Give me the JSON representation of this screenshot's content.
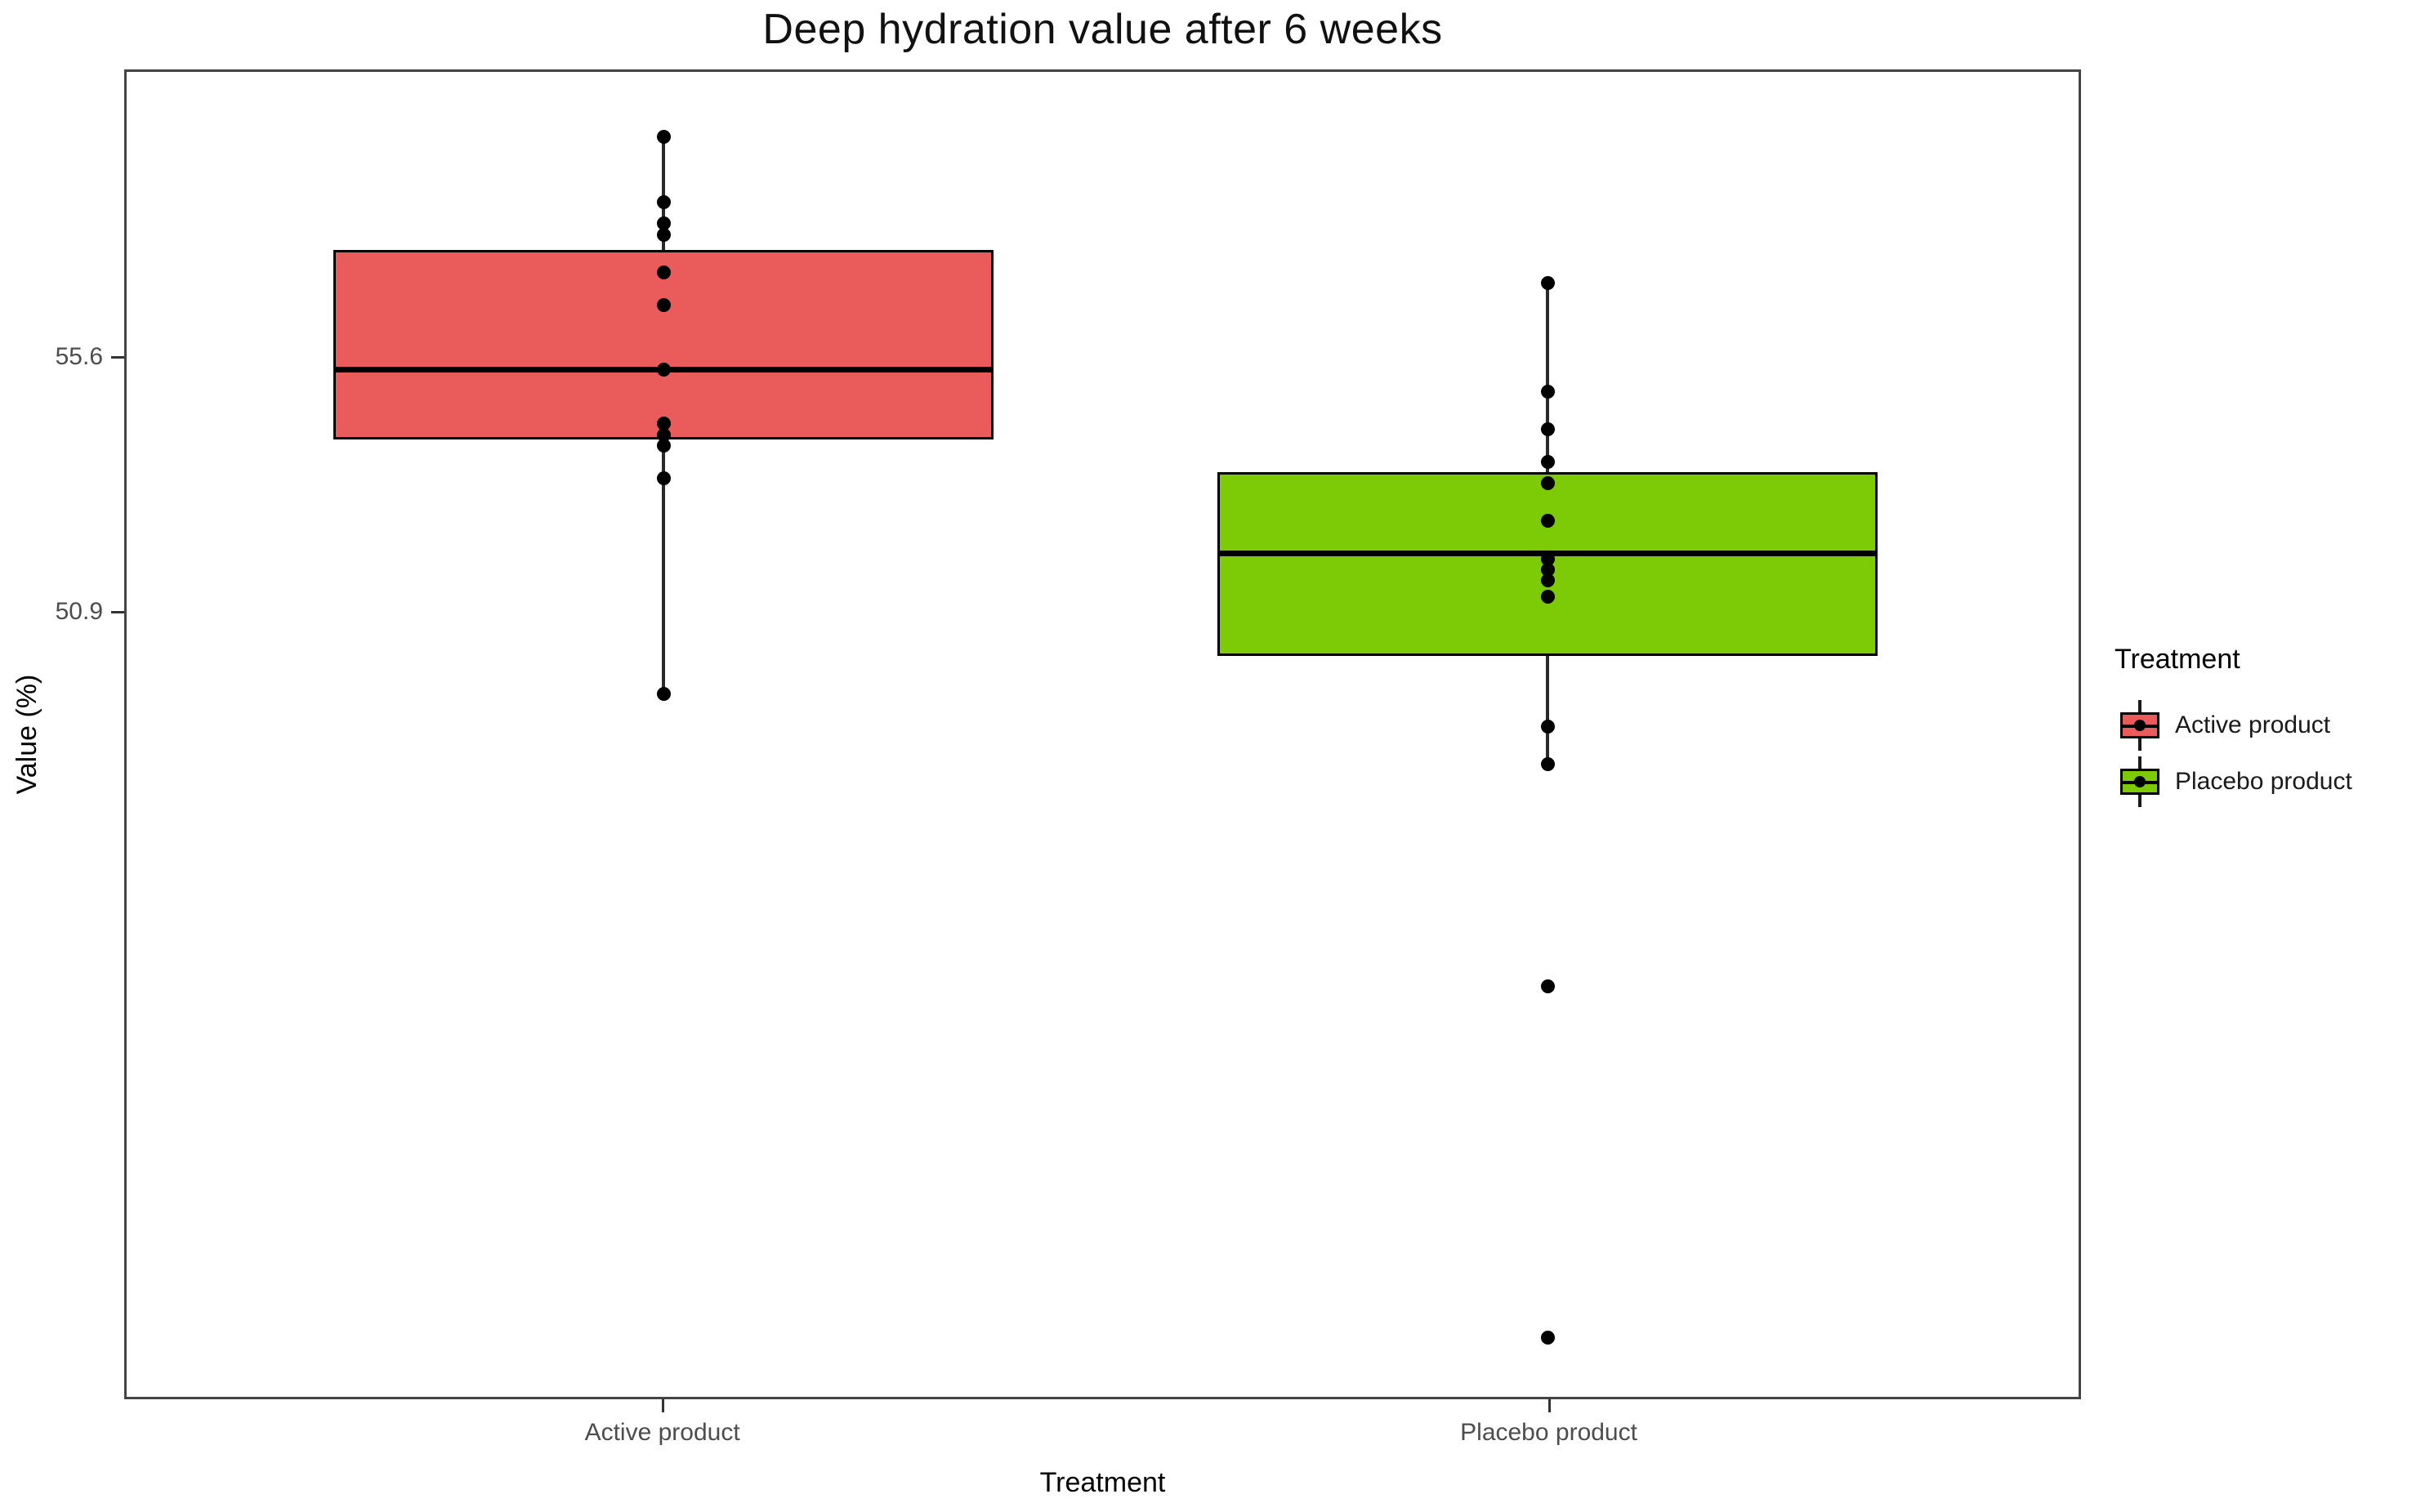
{
  "chart_data": {
    "type": "boxplot",
    "title": "Deep hydration value after 6 weeks",
    "xlabel": "Treatment",
    "ylabel": "Value (%)",
    "y_domain": [
      36.4,
      60.9
    ],
    "y_ticks": [
      {
        "value": 55.6,
        "label": "55.6"
      },
      {
        "value": 50.9,
        "label": "50.9"
      }
    ],
    "grid": false,
    "legend": {
      "title": "Treatment",
      "position": "right",
      "entries": [
        {
          "label": "Active product",
          "color": "#EA5C5C"
        },
        {
          "label": "Placebo product",
          "color": "#7CCB06"
        }
      ]
    },
    "groups": [
      {
        "label": "Active product",
        "color": "#EA5C5C",
        "center_pct": 27.5,
        "width_pct": 33.8,
        "stats": {
          "whisker_low": 49.4,
          "q1": 54.1,
          "median": 55.4,
          "q3": 57.6,
          "whisker_high": 59.7
        },
        "points": [
          59.7,
          58.5,
          58.1,
          57.9,
          57.2,
          56.6,
          55.4,
          54.4,
          54.2,
          54.0,
          53.4,
          49.4
        ],
        "outliers": []
      },
      {
        "label": "Placebo product",
        "color": "#7CCB06",
        "center_pct": 72.8,
        "width_pct": 33.8,
        "stats": {
          "whisker_low": 48.1,
          "q1": 50.1,
          "median": 52.0,
          "q3": 53.5,
          "whisker_high": 57.0
        },
        "points": [
          57.0,
          55.0,
          54.3,
          53.7,
          53.3,
          52.6,
          51.9,
          51.7,
          51.5,
          51.2,
          48.8,
          48.1
        ],
        "outliers": [
          44.0,
          37.5
        ]
      }
    ],
    "styles": {
      "point_color": "#000000",
      "box_border_color": "#000000",
      "median_color": "#000000",
      "whisker_color": "#2a2a2a",
      "panel_border_color": "#444444",
      "tick_label_color": "#4d4d4d",
      "title_color": "#111111"
    }
  }
}
